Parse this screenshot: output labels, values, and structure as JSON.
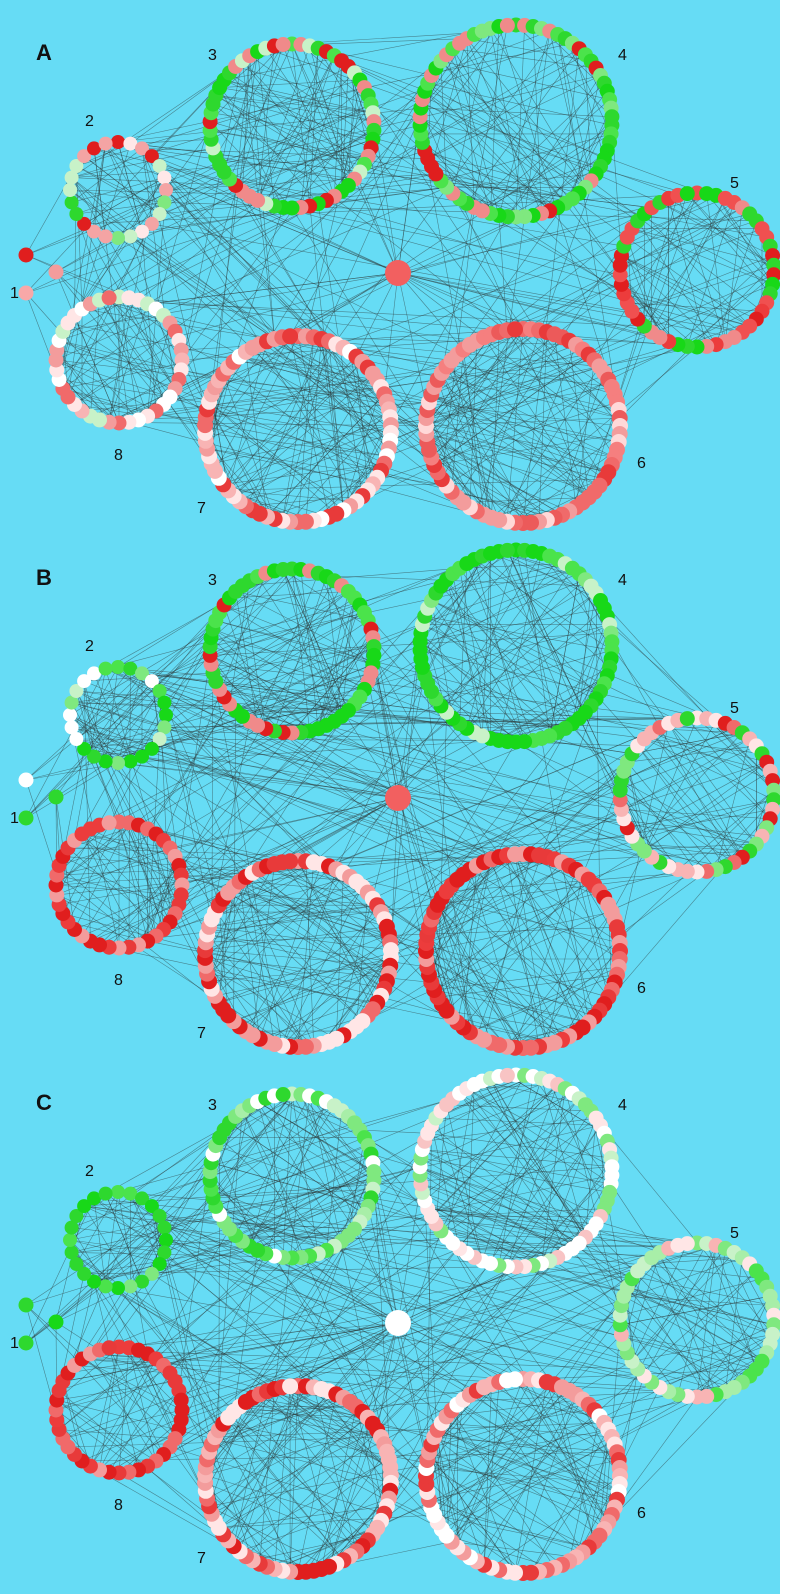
{
  "figure": {
    "panels": [
      {
        "letter": "A",
        "hub_color": "#f26060",
        "singleton_colors": [
          "#e01e1e",
          "#f8a8a8",
          "#f39c9c"
        ],
        "clusters": [
          {
            "label": "1"
          },
          {
            "label": "2",
            "palette": [
              "#e01e1e",
              "#f4a4a4",
              "#c8f2c8",
              "#7fe87f",
              "#ffe8e8",
              "#2ed82e"
            ]
          },
          {
            "label": "3",
            "palette": [
              "#18d818",
              "#4be34b",
              "#e01e1e",
              "#f08a8a",
              "#c8f2c8",
              "#2ed82e"
            ]
          },
          {
            "label": "4",
            "palette": [
              "#18d818",
              "#4be34b",
              "#e01e1e",
              "#7fe87f",
              "#f08a8a",
              "#2ed82e"
            ]
          },
          {
            "label": "5",
            "palette": [
              "#e01e1e",
              "#f05050",
              "#2ed82e",
              "#f08a8a",
              "#18d818",
              "#ec3c3c"
            ]
          },
          {
            "label": "6",
            "palette": [
              "#f06a6a",
              "#f39c9c",
              "#e83a3a",
              "#ffd8d8",
              "#f57f7f",
              "#ec5a5a"
            ]
          },
          {
            "label": "7",
            "palette": [
              "#f06a6a",
              "#f8b4b4",
              "#ffe6e6",
              "#e83a3a",
              "#f39c9c",
              "#ffffff"
            ]
          },
          {
            "label": "8",
            "palette": [
              "#f39c9c",
              "#ffe6e6",
              "#f8b4b4",
              "#c8f2c8",
              "#f06a6a",
              "#ffffff"
            ]
          }
        ]
      },
      {
        "letter": "B",
        "hub_color": "#f26060",
        "singleton_colors": [
          "#ffffff",
          "#2ed82e",
          "#2ed82e"
        ],
        "clusters": [
          {
            "label": "1"
          },
          {
            "label": "2",
            "palette": [
              "#2ed82e",
              "#4be34b",
              "#ffffff",
              "#c8f2c8",
              "#7fe87f",
              "#18d818"
            ]
          },
          {
            "label": "3",
            "palette": [
              "#18d818",
              "#2ed82e",
              "#4be34b",
              "#e01e1e",
              "#f08a8a",
              "#18d818"
            ]
          },
          {
            "label": "4",
            "palette": [
              "#18d818",
              "#2ed82e",
              "#4be34b",
              "#7fe87f",
              "#c8f2c8",
              "#18d818"
            ]
          },
          {
            "label": "5",
            "palette": [
              "#f06a6a",
              "#e01e1e",
              "#f8b4b4",
              "#2ed82e",
              "#ffe6e6",
              "#7fe87f"
            ]
          },
          {
            "label": "6",
            "palette": [
              "#e01e1e",
              "#e83a3a",
              "#f06a6a",
              "#f39c9c",
              "#e01e1e",
              "#ec3c3c"
            ]
          },
          {
            "label": "7",
            "palette": [
              "#e01e1e",
              "#e83a3a",
              "#f06a6a",
              "#f39c9c",
              "#ffe6e6",
              "#e01e1e"
            ]
          },
          {
            "label": "8",
            "palette": [
              "#e01e1e",
              "#e83a3a",
              "#ec3c3c",
              "#f06a6a",
              "#e01e1e",
              "#f39c9c"
            ]
          }
        ]
      },
      {
        "letter": "C",
        "hub_color": "#ffffff",
        "singleton_colors": [
          "#2ed82e",
          "#2ed82e",
          "#18d818"
        ],
        "clusters": [
          {
            "label": "1"
          },
          {
            "label": "2",
            "palette": [
              "#18d818",
              "#2ed82e",
              "#4be34b",
              "#7fe87f",
              "#18d818",
              "#2ed82e"
            ]
          },
          {
            "label": "3",
            "palette": [
              "#7fe87f",
              "#c8f2c8",
              "#4be34b",
              "#a8eea8",
              "#ffffff",
              "#2ed82e"
            ]
          },
          {
            "label": "4",
            "palette": [
              "#ffffff",
              "#ffe6e6",
              "#c8f2c8",
              "#f8c4c4",
              "#7fe87f",
              "#ffffff"
            ]
          },
          {
            "label": "5",
            "palette": [
              "#c8f2c8",
              "#7fe87f",
              "#ffe6e6",
              "#a8eea8",
              "#f8b4b4",
              "#4be34b"
            ]
          },
          {
            "label": "6",
            "palette": [
              "#f39c9c",
              "#f8b4b4",
              "#ffe6e6",
              "#f06a6a",
              "#ffffff",
              "#e83a3a"
            ]
          },
          {
            "label": "7",
            "palette": [
              "#f06a6a",
              "#f39c9c",
              "#e83a3a",
              "#f8b4b4",
              "#e01e1e",
              "#ffe6e6"
            ]
          },
          {
            "label": "8",
            "palette": [
              "#e83a3a",
              "#f06a6a",
              "#e01e1e",
              "#f39c9c",
              "#ec3c3c",
              "#e01e1e"
            ]
          }
        ]
      }
    ]
  }
}
